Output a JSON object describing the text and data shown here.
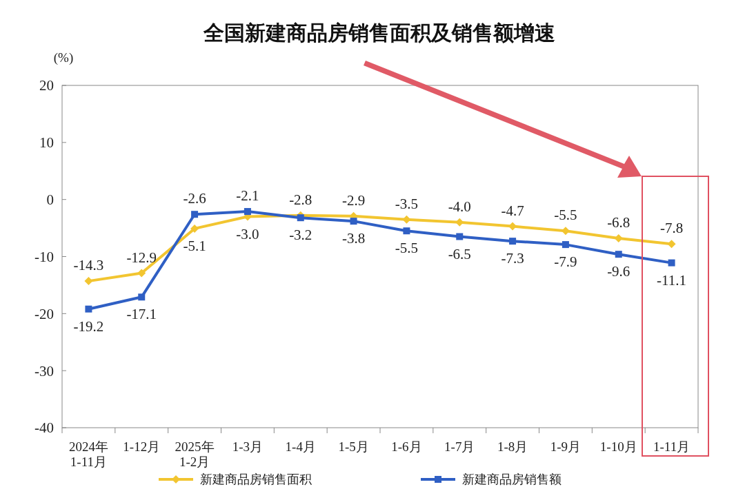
{
  "chart_data": {
    "type": "line",
    "title": "全国新建商品房销售面积及销售额增速",
    "ylabel": "(%)",
    "categories": [
      "2024年\n1-11月",
      "1-12月",
      "2025年\n1-2月",
      "1-3月",
      "1-4月",
      "1-5月",
      "1-6月",
      "1-7月",
      "1-8月",
      "1-9月",
      "1-10月",
      "1-11月"
    ],
    "series": [
      {
        "name": "新建商品房销售面积",
        "color": "#f2c530",
        "values": [
          -14.3,
          -12.9,
          -5.1,
          -3.0,
          -2.8,
          -2.9,
          -3.5,
          -4.0,
          -4.7,
          -5.5,
          -6.8,
          -7.8
        ],
        "value_labels": [
          "-14.3",
          "-12.9",
          "-5.1",
          "-3.0",
          "-2.8",
          "-2.9",
          "-3.5",
          "-4.0",
          "-4.7",
          "-5.5",
          "-6.8",
          "-7.8"
        ],
        "marker": "diamond"
      },
      {
        "name": "新建商品房销售额",
        "color": "#2f5fc4",
        "values": [
          -19.2,
          -17.1,
          -2.6,
          -2.1,
          -3.2,
          -3.8,
          -5.5,
          -6.5,
          -7.3,
          -7.9,
          -9.6,
          -11.1
        ],
        "value_labels": [
          "-19.2",
          "-17.1",
          "-2.6",
          "-2.1",
          "-3.2",
          "-3.8",
          "-5.5",
          "-6.5",
          "-7.3",
          "-7.9",
          "-9.6",
          "-11.1"
        ],
        "marker": "square"
      }
    ],
    "ylim": [
      -40,
      20
    ],
    "yticks": [
      -40,
      -30,
      -20,
      -10,
      0,
      10,
      20
    ],
    "grid": false,
    "legend": "bottom",
    "line_style": "solid"
  }
}
